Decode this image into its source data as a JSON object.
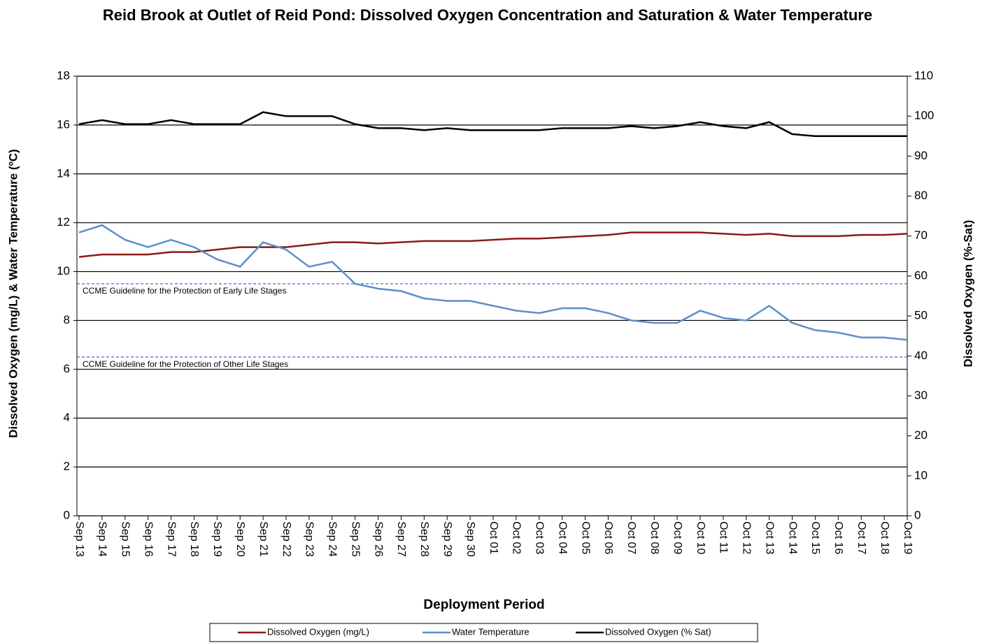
{
  "chart_data": {
    "type": "line",
    "title": "Reid Brook at Outlet  of Reid Pond: Dissolved Oxygen Concentration and Saturation & Water Temperature",
    "x_label": "Deployment Period",
    "y_label": "Dissolved  Oxygen (mg/L) & Water Temperature (ºC)",
    "y2_label": "Dissolved  Oxygen (%-Sat)",
    "categories": [
      "Sep 13",
      "Sep 14",
      "Sep 15",
      "Sep 16",
      "Sep 17",
      "Sep 18",
      "Sep 19",
      "Sep 20",
      "Sep 21",
      "Sep 22",
      "Sep 23",
      "Sep 24",
      "Sep 25",
      "Sep 26",
      "Sep 27",
      "Sep 28",
      "Sep 29",
      "Sep 30",
      "Oct 01",
      "Oct 02",
      "Oct 03",
      "Oct 04",
      "Oct 05",
      "Oct 06",
      "Oct 07",
      "Oct 08",
      "Oct 09",
      "Oct 10",
      "Oct 11",
      "Oct 12",
      "Oct 13",
      "Oct 14",
      "Oct 15",
      "Oct 16",
      "Oct 17",
      "Oct 18",
      "Oct 19"
    ],
    "series": [
      {
        "name": "Dissolved Oxygen (mg/L)",
        "color": "#8b1a1a",
        "values": [
          10.6,
          10.7,
          10.7,
          10.7,
          10.8,
          10.8,
          10.9,
          11.0,
          11.0,
          11.0,
          11.1,
          11.2,
          11.2,
          11.15,
          11.2,
          11.25,
          11.25,
          11.25,
          11.3,
          11.35,
          11.35,
          11.4,
          11.45,
          11.5,
          11.6,
          11.6,
          11.6,
          11.6,
          11.55,
          11.5,
          11.55,
          11.45,
          11.45,
          11.45,
          11.5,
          11.5,
          11.55
        ]
      },
      {
        "name": "Water Temperature",
        "color": "#5b8fc9",
        "values": [
          11.6,
          11.9,
          11.3,
          11.0,
          11.3,
          11.0,
          10.5,
          10.2,
          11.2,
          10.9,
          10.2,
          10.4,
          9.5,
          9.3,
          9.2,
          8.9,
          8.8,
          8.8,
          8.6,
          8.4,
          8.3,
          8.5,
          8.5,
          8.3,
          8.0,
          7.9,
          7.9,
          8.4,
          8.1,
          8.0,
          8.6,
          7.9,
          7.6,
          7.5,
          7.3,
          7.3,
          7.2
        ]
      },
      {
        "name": "Dissolved Oxygen (% Sat)",
        "color": "#000000",
        "axis": "y2",
        "values": [
          98,
          99,
          98,
          98,
          99,
          98,
          98,
          98,
          101,
          100,
          100,
          100,
          98,
          97,
          97,
          96.5,
          97,
          96.5,
          96.5,
          96.5,
          96.5,
          97,
          97,
          97,
          97.5,
          97,
          97.5,
          98.5,
          97.5,
          97,
          98.5,
          95.5,
          95,
          95,
          95,
          95,
          95
        ]
      }
    ],
    "reference_lines": [
      {
        "value": 9.5,
        "label": "CCME Guideline  for the Protection of Early Life Stages",
        "color": "#3333cc"
      },
      {
        "value": 6.5,
        "label": "CCME Guideline  for the Protection of Other Life Stages",
        "color": "#3333cc"
      }
    ],
    "ylim": [
      0,
      18
    ],
    "yticks": [
      0,
      2,
      4,
      6,
      8,
      10,
      12,
      14,
      16,
      18
    ],
    "y2lim": [
      0,
      110
    ],
    "y2ticks": [
      0,
      10,
      20,
      30,
      40,
      50,
      60,
      70,
      80,
      90,
      100,
      110
    ],
    "grid": true
  }
}
